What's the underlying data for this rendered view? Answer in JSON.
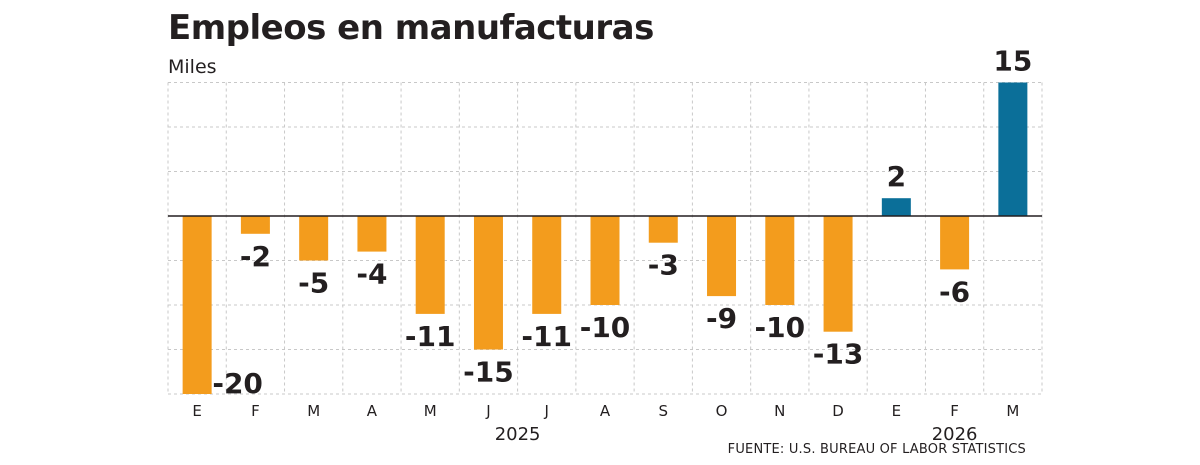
{
  "title": "Empleos en manufacturas",
  "units": "Miles",
  "source": "FUENTE: U.S. BUREAU OF LABOR STATISTICS",
  "colors": {
    "negative": "#f39c1d",
    "positive": "#0b6f99",
    "grid": "#c8c8c8",
    "zero_line": "#231f20"
  },
  "chart_data": {
    "type": "bar",
    "categories": [
      "E",
      "F",
      "M",
      "A",
      "M",
      "J",
      "J",
      "A",
      "S",
      "O",
      "N",
      "D",
      "E",
      "F",
      "M"
    ],
    "values": [
      -20,
      -2,
      -5,
      -4,
      -11,
      -15,
      -11,
      -10,
      -3,
      -9,
      -10,
      -13,
      2,
      -6,
      15
    ],
    "data_labels": [
      "-20",
      "-2",
      "-5",
      "-4",
      "-11",
      "-15",
      "-11",
      "-10",
      "-3",
      "-9",
      "-10",
      "-13",
      "2",
      "-6",
      "15"
    ],
    "years": [
      {
        "label": "2025",
        "from_index": 0,
        "to_index": 11
      },
      {
        "label": "2026",
        "from_index": 12,
        "to_index": 14
      }
    ],
    "ylim": [
      -20,
      15
    ],
    "grid": true
  }
}
